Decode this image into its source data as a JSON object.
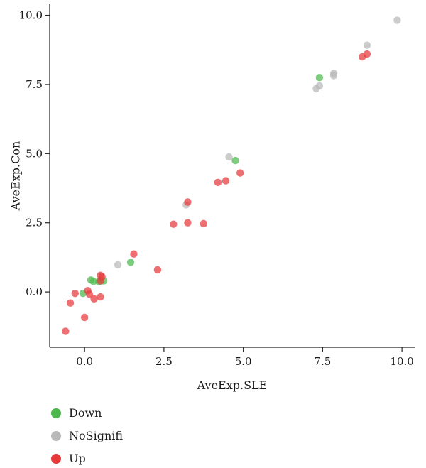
{
  "chart_data": {
    "type": "scatter",
    "xlabel": "AveExp.SLE",
    "ylabel": "AveExp.Con",
    "xlim": [
      -1.1,
      10.4
    ],
    "ylim": [
      -2.0,
      10.4
    ],
    "xticks": [
      0.0,
      2.5,
      5.0,
      7.5,
      10.0
    ],
    "yticks": [
      0.0,
      2.5,
      5.0,
      7.5,
      10.0
    ],
    "xtick_labels": [
      "0.0",
      "2.5",
      "5.0",
      "7.5",
      "10.0"
    ],
    "ytick_labels": [
      "0.0",
      "2.5",
      "5.0",
      "7.5",
      "10.0"
    ],
    "grid": false,
    "legend_position": "bottom-left",
    "series": [
      {
        "name": "Down",
        "color": "#4cb84c",
        "points": [
          [
            7.4,
            7.75
          ],
          [
            4.75,
            4.75
          ],
          [
            1.45,
            1.07
          ],
          [
            0.2,
            0.43
          ],
          [
            0.28,
            0.38
          ],
          [
            0.45,
            0.37
          ],
          [
            0.6,
            0.4
          ],
          [
            -0.05,
            -0.05
          ]
        ]
      },
      {
        "name": "NoSignifi",
        "color": "#b9b9b9",
        "points": [
          [
            9.85,
            9.82
          ],
          [
            8.9,
            8.92
          ],
          [
            7.85,
            7.9
          ],
          [
            7.85,
            7.82
          ],
          [
            7.4,
            7.45
          ],
          [
            7.3,
            7.35
          ],
          [
            4.55,
            4.88
          ],
          [
            3.2,
            3.15
          ],
          [
            1.05,
            0.98
          ]
        ]
      },
      {
        "name": "Up",
        "color": "#e8383a",
        "points": [
          [
            8.9,
            8.6
          ],
          [
            8.75,
            8.5
          ],
          [
            4.9,
            4.3
          ],
          [
            4.45,
            4.02
          ],
          [
            4.2,
            3.96
          ],
          [
            3.25,
            3.25
          ],
          [
            3.75,
            2.47
          ],
          [
            3.25,
            2.5
          ],
          [
            2.8,
            2.45
          ],
          [
            1.55,
            1.37
          ],
          [
            2.3,
            0.8
          ],
          [
            0.5,
            0.6
          ],
          [
            0.55,
            0.55
          ],
          [
            0.5,
            0.4
          ],
          [
            0.1,
            0.05
          ],
          [
            0.15,
            -0.08
          ],
          [
            -0.3,
            -0.05
          ],
          [
            0.5,
            -0.18
          ],
          [
            0.3,
            -0.25
          ],
          [
            -0.45,
            -0.4
          ],
          [
            0.0,
            -0.92
          ],
          [
            -0.6,
            -1.42
          ]
        ]
      }
    ]
  }
}
